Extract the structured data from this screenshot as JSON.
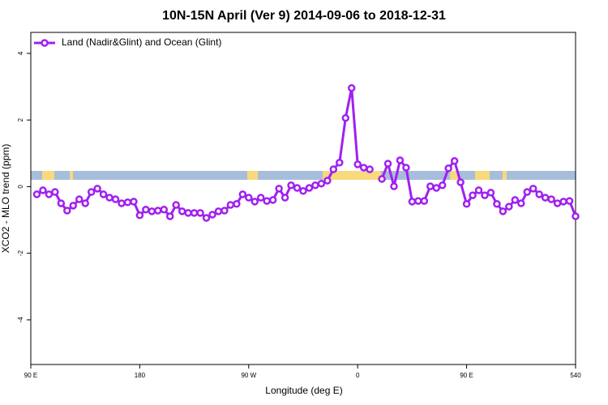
{
  "chart_data": {
    "type": "line",
    "title": "10N-15N April (Ver 9)   2014-09-06 to 2018-12-31",
    "x_label": "Longitude (deg E)",
    "y_label": "XCO2 - MLO trend (ppm)",
    "xlim": [
      90,
      540
    ],
    "ylim": [
      -5.34,
      4.63
    ],
    "xticks": [
      {
        "value": 90,
        "label": "90 E"
      },
      180,
      {
        "value": 270,
        "label": "90 W"
      },
      {
        "value": 360,
        "label": "0"
      },
      {
        "value": 450,
        "label": "90 E"
      },
      540
    ],
    "yticks": [
      -4,
      -2,
      0,
      2,
      4
    ],
    "legend_position": "top-left",
    "x": [
      95,
      100,
      105,
      110,
      115,
      120,
      125,
      130,
      135,
      140,
      145,
      150,
      155,
      160,
      165,
      170,
      175,
      180,
      185,
      190,
      195,
      200,
      205,
      210,
      215,
      220,
      225,
      230,
      235,
      240,
      245,
      250,
      255,
      260,
      265,
      270,
      275,
      280,
      285,
      290,
      295,
      300,
      305,
      310,
      315,
      320,
      325,
      330,
      335,
      340,
      345,
      350,
      355,
      360,
      365,
      370,
      375,
      380,
      385,
      390,
      395,
      400,
      405,
      410,
      415,
      420,
      425,
      430,
      435,
      440,
      445,
      450,
      455,
      460,
      465,
      470,
      475,
      480,
      485,
      490,
      495,
      500,
      505,
      510,
      515,
      520,
      525,
      530,
      535,
      540
    ],
    "series": [
      {
        "name": "Land (Nadir&Glint) and Ocean (Glint)",
        "color": "#a020f0",
        "values": [
          -0.23,
          -0.11,
          -0.23,
          -0.16,
          -0.5,
          -0.72,
          -0.57,
          -0.38,
          -0.5,
          -0.16,
          -0.06,
          -0.23,
          -0.33,
          -0.38,
          -0.5,
          -0.47,
          -0.45,
          -0.86,
          -0.69,
          -0.74,
          -0.72,
          -0.69,
          -0.89,
          -0.55,
          -0.74,
          -0.79,
          -0.79,
          -0.79,
          -0.94,
          -0.84,
          -0.74,
          -0.72,
          -0.55,
          -0.52,
          -0.23,
          -0.33,
          -0.45,
          -0.33,
          -0.43,
          -0.4,
          -0.06,
          -0.33,
          0.04,
          -0.04,
          -0.13,
          -0.04,
          0.04,
          0.09,
          0.18,
          0.52,
          0.72,
          2.06,
          2.96,
          0.67,
          0.57,
          0.52,
          null,
          0.23,
          0.69,
          0.01,
          0.79,
          0.57,
          -0.45,
          -0.43,
          -0.43,
          0.01,
          -0.04,
          0.04,
          0.55,
          0.77,
          0.13,
          -0.52,
          -0.26,
          -0.11,
          -0.26,
          -0.18,
          -0.52,
          -0.74,
          -0.6,
          -0.4,
          -0.5,
          -0.16,
          -0.06,
          -0.23,
          -0.33,
          -0.38,
          -0.5,
          -0.45,
          -0.43,
          -0.89
        ]
      }
    ]
  }
}
